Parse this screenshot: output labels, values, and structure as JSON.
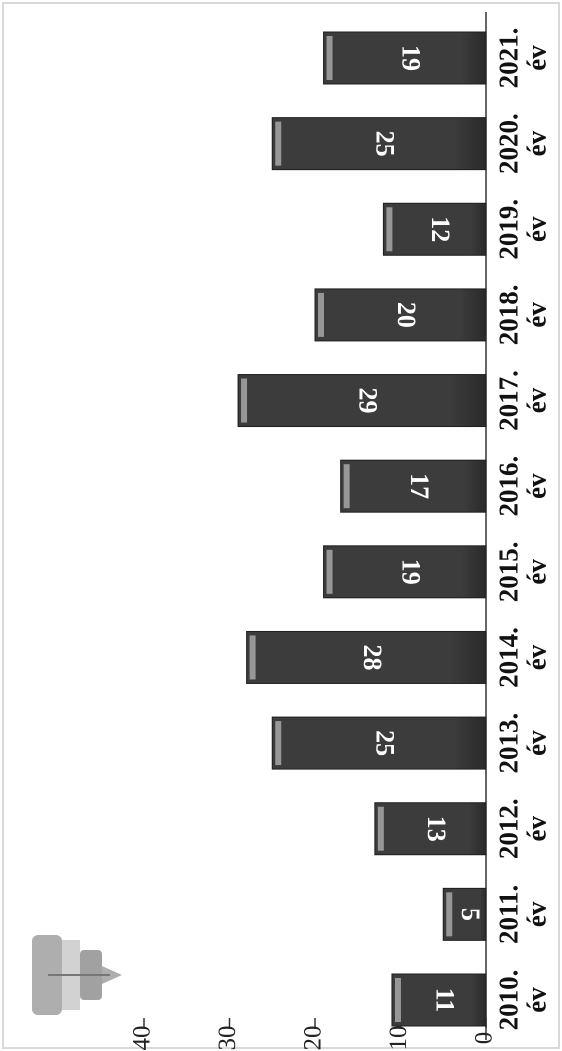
{
  "chart_data": {
    "type": "bar",
    "orientation": "horizontal",
    "categories": [
      [
        "2010.",
        "év"
      ],
      [
        "2011.",
        "év"
      ],
      [
        "2012.",
        "év"
      ],
      [
        "2013.",
        "év"
      ],
      [
        "2014.",
        "év"
      ],
      [
        "2015.",
        "év"
      ],
      [
        "2016.",
        "év"
      ],
      [
        "2017.",
        "év"
      ],
      [
        "2018.",
        "év"
      ],
      [
        "2019.",
        "év"
      ],
      [
        "2020.",
        "év"
      ],
      [
        "2021.",
        "év"
      ]
    ],
    "values": [
      11,
      5,
      13,
      25,
      28,
      19,
      17,
      29,
      20,
      12,
      25,
      19
    ],
    "value_labels": [
      "11",
      "5",
      "13",
      "25",
      "28",
      "19",
      "17",
      "29",
      "20",
      "12",
      "25",
      "19"
    ],
    "axis_ticks": [
      "0",
      "10",
      "20",
      "30",
      "40"
    ],
    "xlim": [
      0,
      40
    ],
    "grid": false,
    "legend": "none",
    "rotation": "page rotated 90° clockwise",
    "colors": {
      "bar": "#3c3c3c",
      "bar_highlight": "#b5b5b5",
      "axis": "#333333",
      "frame": "#d9d9d9"
    }
  }
}
